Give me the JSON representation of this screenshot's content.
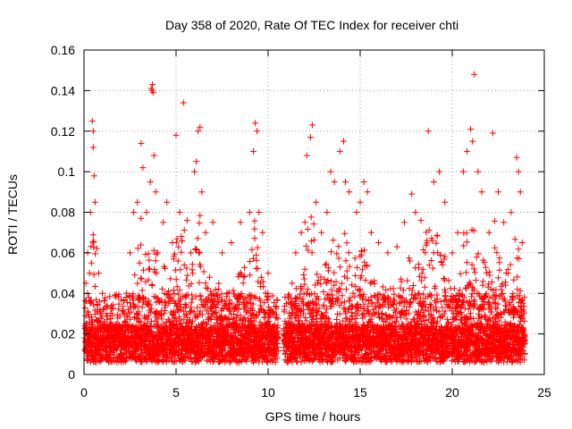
{
  "chart_data": {
    "type": "scatter",
    "title": "Day 358 of 2020, Rate Of TEC Index for receiver chti",
    "xlabel": "GPS time / hours",
    "ylabel": "ROTI / TECUs",
    "xlim": [
      0,
      25
    ],
    "ylim": [
      0,
      0.16
    ],
    "grid": true,
    "marker": "+",
    "color": "#ff0000",
    "x_ticks": [
      0,
      5,
      10,
      15,
      20,
      25
    ],
    "x_tick_labels": [
      "0",
      "5",
      "10",
      "15",
      "20",
      "25"
    ],
    "y_ticks": [
      0,
      0.02,
      0.04,
      0.06,
      0.08,
      0.1,
      0.12,
      0.14,
      0.16
    ],
    "y_tick_labels": [
      "0",
      "0.02",
      "0.04",
      "0.06",
      "0.08",
      "0.1",
      "0.12",
      "0.14",
      "0.16"
    ],
    "data_gap_hours": [
      10.55,
      10.85
    ],
    "series": [
      {
        "name": "ROTI",
        "points": [
          [
            0.05,
            0.012
          ],
          [
            0.1,
            0.045
          ],
          [
            0.15,
            0.025
          ],
          [
            0.2,
            0.06
          ],
          [
            0.3,
            0.05
          ],
          [
            0.35,
            0.08
          ],
          [
            0.45,
            0.125
          ],
          [
            0.5,
            0.12
          ],
          [
            0.5,
            0.112
          ],
          [
            0.55,
            0.098
          ],
          [
            0.6,
            0.085
          ],
          [
            0.7,
            0.062
          ],
          [
            0.8,
            0.05
          ],
          [
            1.0,
            0.04
          ],
          [
            1.2,
            0.03
          ],
          [
            1.5,
            0.022
          ],
          [
            1.8,
            0.02
          ],
          [
            2.0,
            0.015
          ],
          [
            2.3,
            0.04
          ],
          [
            2.5,
            0.06
          ],
          [
            2.7,
            0.08
          ],
          [
            2.9,
            0.085
          ],
          [
            3.1,
            0.114
          ],
          [
            3.2,
            0.102
          ],
          [
            3.4,
            0.08
          ],
          [
            3.6,
            0.095
          ],
          [
            3.65,
            0.141
          ],
          [
            3.7,
            0.14
          ],
          [
            3.72,
            0.143
          ],
          [
            3.75,
            0.139
          ],
          [
            3.8,
            0.108
          ],
          [
            3.9,
            0.09
          ],
          [
            4.0,
            0.06
          ],
          [
            4.3,
            0.075
          ],
          [
            4.5,
            0.085
          ],
          [
            4.8,
            0.065
          ],
          [
            5.0,
            0.118
          ],
          [
            5.2,
            0.08
          ],
          [
            5.4,
            0.134
          ],
          [
            5.6,
            0.076
          ],
          [
            5.8,
            0.06
          ],
          [
            6.0,
            0.1
          ],
          [
            6.1,
            0.105
          ],
          [
            6.2,
            0.12
          ],
          [
            6.3,
            0.122
          ],
          [
            6.4,
            0.09
          ],
          [
            6.6,
            0.07
          ],
          [
            7.0,
            0.075
          ],
          [
            7.5,
            0.06
          ],
          [
            8.0,
            0.065
          ],
          [
            8.5,
            0.075
          ],
          [
            9.0,
            0.08
          ],
          [
            9.2,
            0.11
          ],
          [
            9.3,
            0.124
          ],
          [
            9.4,
            0.12
          ],
          [
            9.5,
            0.08
          ],
          [
            9.7,
            0.07
          ],
          [
            10.0,
            0.05
          ],
          [
            10.3,
            0.03
          ],
          [
            10.5,
            0.02
          ],
          [
            11.0,
            0.035
          ],
          [
            11.3,
            0.045
          ],
          [
            11.5,
            0.06
          ],
          [
            11.8,
            0.07
          ],
          [
            12.0,
            0.075
          ],
          [
            12.1,
            0.108
          ],
          [
            12.3,
            0.117
          ],
          [
            12.4,
            0.123
          ],
          [
            12.6,
            0.085
          ],
          [
            12.9,
            0.07
          ],
          [
            13.2,
            0.08
          ],
          [
            13.4,
            0.1
          ],
          [
            13.6,
            0.095
          ],
          [
            13.9,
            0.11
          ],
          [
            14.1,
            0.115
          ],
          [
            14.2,
            0.095
          ],
          [
            14.4,
            0.09
          ],
          [
            14.8,
            0.08
          ],
          [
            15.0,
            0.085
          ],
          [
            15.2,
            0.095
          ],
          [
            15.4,
            0.09
          ],
          [
            15.6,
            0.07
          ],
          [
            16.0,
            0.065
          ],
          [
            16.5,
            0.06
          ],
          [
            17.0,
            0.063
          ],
          [
            17.4,
            0.075
          ],
          [
            17.8,
            0.089
          ],
          [
            18.0,
            0.08
          ],
          [
            18.3,
            0.076
          ],
          [
            18.7,
            0.12
          ],
          [
            19.0,
            0.095
          ],
          [
            19.3,
            0.1
          ],
          [
            19.6,
            0.085
          ],
          [
            20.0,
            0.06
          ],
          [
            20.3,
            0.07
          ],
          [
            20.6,
            0.1
          ],
          [
            20.8,
            0.11
          ],
          [
            21.0,
            0.121
          ],
          [
            21.1,
            0.115
          ],
          [
            21.2,
            0.148
          ],
          [
            21.4,
            0.1
          ],
          [
            21.6,
            0.09
          ],
          [
            22.0,
            0.07
          ],
          [
            22.2,
            0.119
          ],
          [
            22.5,
            0.09
          ],
          [
            22.8,
            0.075
          ],
          [
            23.2,
            0.08
          ],
          [
            23.5,
            0.107
          ],
          [
            23.6,
            0.1
          ],
          [
            23.7,
            0.09
          ],
          [
            23.8,
            0.065
          ],
          [
            23.9,
            0.03
          ]
        ]
      }
    ]
  }
}
